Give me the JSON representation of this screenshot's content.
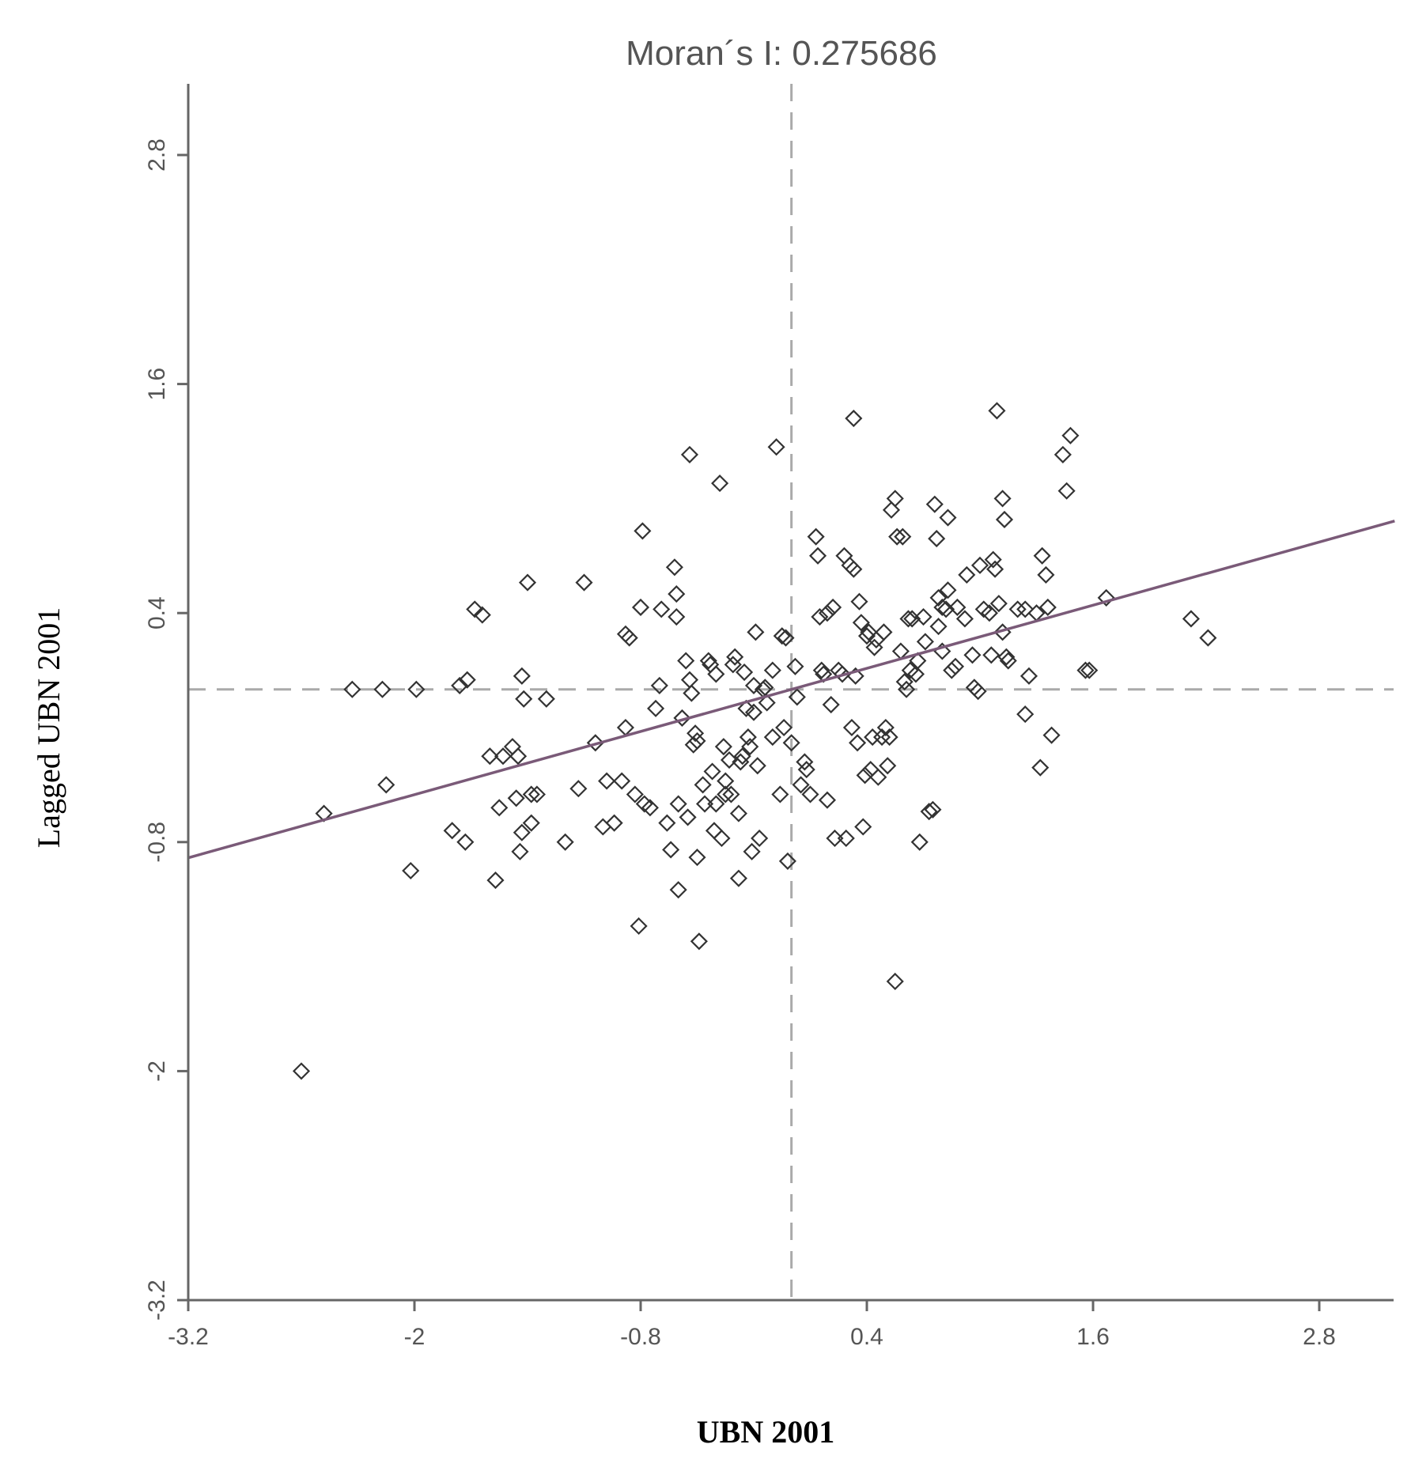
{
  "chart_data": {
    "type": "scatter",
    "title": "Moran´s I: 0.275686",
    "xlabel": "UBN 2001",
    "ylabel": "Lagged UBN 2001",
    "xlim": [
      -3.2,
      3.2
    ],
    "ylim": [
      -3.2,
      3.2
    ],
    "xticks": [
      "-3.2",
      "-2",
      "-0.8",
      "0.4",
      "1.6",
      "2.8"
    ],
    "yticks": [
      "-3.2",
      "-2",
      "-0.8",
      "0.4",
      "1.6",
      "2.8"
    ],
    "ref_x": 0.0,
    "ref_y": 0.0,
    "fit_line": {
      "slope": 0.275686,
      "intercept": 0.0
    },
    "grid": false,
    "points": [
      [
        -2.6,
        -2.0
      ],
      [
        -2.48,
        -0.65
      ],
      [
        -2.33,
        0.0
      ],
      [
        -2.17,
        0.0
      ],
      [
        -1.99,
        0.0
      ],
      [
        -2.15,
        -0.5
      ],
      [
        -2.02,
        -0.95
      ],
      [
        -1.8,
        -0.74
      ],
      [
        -1.76,
        0.02
      ],
      [
        -1.72,
        0.05
      ],
      [
        -1.68,
        0.42
      ],
      [
        -1.64,
        0.39
      ],
      [
        -1.73,
        -0.8
      ],
      [
        -1.6,
        -0.35
      ],
      [
        -1.57,
        -1.0
      ],
      [
        -1.55,
        -0.62
      ],
      [
        -1.53,
        -0.35
      ],
      [
        -1.48,
        -0.3
      ],
      [
        -1.46,
        -0.57
      ],
      [
        -1.45,
        -0.35
      ],
      [
        -1.44,
        -0.85
      ],
      [
        -1.43,
        -0.75
      ],
      [
        -1.43,
        0.07
      ],
      [
        -1.42,
        -0.05
      ],
      [
        -1.4,
        0.56
      ],
      [
        -1.38,
        -0.55
      ],
      [
        -1.38,
        -0.7
      ],
      [
        -1.35,
        -0.55
      ],
      [
        -1.3,
        -0.05
      ],
      [
        -1.2,
        -0.8
      ],
      [
        -1.13,
        -0.52
      ],
      [
        -1.1,
        0.56
      ],
      [
        -1.04,
        -0.28
      ],
      [
        -1.0,
        -0.72
      ],
      [
        -0.98,
        -0.48
      ],
      [
        -0.94,
        -0.7
      ],
      [
        -0.9,
        -0.48
      ],
      [
        -0.88,
        -0.2
      ],
      [
        -0.88,
        0.29
      ],
      [
        -0.86,
        0.27
      ],
      [
        -0.83,
        -0.55
      ],
      [
        -0.81,
        -1.24
      ],
      [
        -0.8,
        0.43
      ],
      [
        -0.79,
        0.83
      ],
      [
        -0.78,
        -0.6
      ],
      [
        -0.75,
        -0.62
      ],
      [
        -0.72,
        -0.1
      ],
      [
        -0.7,
        0.02
      ],
      [
        -0.69,
        0.42
      ],
      [
        -0.66,
        -0.7
      ],
      [
        -0.64,
        -0.84
      ],
      [
        -0.62,
        0.64
      ],
      [
        -0.61,
        0.5
      ],
      [
        -0.61,
        0.38
      ],
      [
        -0.6,
        -0.6
      ],
      [
        -0.6,
        -1.05
      ],
      [
        -0.58,
        -0.15
      ],
      [
        -0.56,
        0.15
      ],
      [
        -0.55,
        -0.67
      ],
      [
        -0.54,
        1.23
      ],
      [
        -0.54,
        0.05
      ],
      [
        -0.53,
        -0.02
      ],
      [
        -0.52,
        -0.29
      ],
      [
        -0.51,
        -0.23
      ],
      [
        -0.5,
        -0.27
      ],
      [
        -0.5,
        -0.88
      ],
      [
        -0.49,
        -1.32
      ],
      [
        -0.47,
        -0.5
      ],
      [
        -0.46,
        -0.6
      ],
      [
        -0.44,
        0.15
      ],
      [
        -0.43,
        0.13
      ],
      [
        -0.42,
        -0.43
      ],
      [
        -0.41,
        -0.74
      ],
      [
        -0.4,
        0.08
      ],
      [
        -0.4,
        -0.6
      ],
      [
        -0.38,
        1.08
      ],
      [
        -0.37,
        -0.78
      ],
      [
        -0.36,
        -0.3
      ],
      [
        -0.35,
        -0.48
      ],
      [
        -0.35,
        -0.55
      ],
      [
        -0.33,
        -0.37
      ],
      [
        -0.32,
        -0.55
      ],
      [
        -0.31,
        0.13
      ],
      [
        -0.3,
        0.17
      ],
      [
        -0.28,
        -0.65
      ],
      [
        -0.28,
        -0.99
      ],
      [
        -0.27,
        -0.38
      ],
      [
        -0.26,
        -0.35
      ],
      [
        -0.25,
        0.09
      ],
      [
        -0.24,
        -0.1
      ],
      [
        -0.23,
        -0.25
      ],
      [
        -0.22,
        -0.3
      ],
      [
        -0.21,
        -0.85
      ],
      [
        -0.2,
        0.02
      ],
      [
        -0.2,
        -0.12
      ],
      [
        -0.19,
        0.3
      ],
      [
        -0.18,
        -0.4
      ],
      [
        -0.17,
        -0.78
      ],
      [
        -0.15,
        0.0
      ],
      [
        -0.14,
        0.01
      ],
      [
        -0.13,
        -0.07
      ],
      [
        -0.1,
        0.1
      ],
      [
        -0.1,
        -0.25
      ],
      [
        -0.08,
        1.27
      ],
      [
        -0.06,
        -0.55
      ],
      [
        -0.05,
        0.28
      ],
      [
        -0.04,
        -0.2
      ],
      [
        -0.03,
        0.27
      ],
      [
        -0.02,
        -0.9
      ],
      [
        0.0,
        -0.28
      ],
      [
        0.02,
        0.12
      ],
      [
        0.03,
        -0.04
      ],
      [
        0.05,
        -0.5
      ],
      [
        0.07,
        -0.38
      ],
      [
        0.08,
        -0.42
      ],
      [
        0.1,
        -0.55
      ],
      [
        0.13,
        0.8
      ],
      [
        0.14,
        0.7
      ],
      [
        0.15,
        0.38
      ],
      [
        0.16,
        0.1
      ],
      [
        0.17,
        0.08
      ],
      [
        0.19,
        -0.58
      ],
      [
        0.19,
        0.4
      ],
      [
        0.21,
        -0.08
      ],
      [
        0.22,
        0.43
      ],
      [
        0.23,
        -0.78
      ],
      [
        0.25,
        0.1
      ],
      [
        0.27,
        0.08
      ],
      [
        0.28,
        0.7
      ],
      [
        0.29,
        -0.78
      ],
      [
        0.31,
        0.65
      ],
      [
        0.32,
        -0.2
      ],
      [
        0.33,
        1.42
      ],
      [
        0.33,
        0.63
      ],
      [
        0.34,
        0.07
      ],
      [
        0.35,
        -0.28
      ],
      [
        0.36,
        0.46
      ],
      [
        0.37,
        0.35
      ],
      [
        0.38,
        -0.72
      ],
      [
        0.39,
        -0.45
      ],
      [
        0.4,
        0.28
      ],
      [
        0.41,
        0.3
      ],
      [
        0.42,
        -0.42
      ],
      [
        0.43,
        -0.25
      ],
      [
        0.44,
        0.22
      ],
      [
        0.45,
        0.26
      ],
      [
        0.46,
        -0.46
      ],
      [
        0.48,
        -0.25
      ],
      [
        0.49,
        0.3
      ],
      [
        0.5,
        -0.2
      ],
      [
        0.51,
        -0.4
      ],
      [
        0.52,
        -0.25
      ],
      [
        0.53,
        0.94
      ],
      [
        0.55,
        1.0
      ],
      [
        0.55,
        -1.53
      ],
      [
        0.56,
        0.8
      ],
      [
        0.58,
        0.2
      ],
      [
        0.59,
        0.8
      ],
      [
        0.6,
        0.04
      ],
      [
        0.61,
        0.0
      ],
      [
        0.62,
        0.37
      ],
      [
        0.63,
        0.1
      ],
      [
        0.64,
        0.37
      ],
      [
        0.66,
        0.08
      ],
      [
        0.67,
        0.15
      ],
      [
        0.68,
        -0.8
      ],
      [
        0.7,
        0.38
      ],
      [
        0.71,
        0.25
      ],
      [
        0.73,
        -0.64
      ],
      [
        0.75,
        -0.63
      ],
      [
        0.76,
        0.97
      ],
      [
        0.77,
        0.79
      ],
      [
        0.78,
        0.33
      ],
      [
        0.78,
        0.48
      ],
      [
        0.8,
        0.43
      ],
      [
        0.8,
        0.2
      ],
      [
        0.82,
        0.42
      ],
      [
        0.83,
        0.52
      ],
      [
        0.83,
        0.9
      ],
      [
        0.85,
        0.1
      ],
      [
        0.87,
        0.12
      ],
      [
        0.88,
        0.43
      ],
      [
        0.92,
        0.37
      ],
      [
        0.93,
        0.6
      ],
      [
        0.96,
        0.18
      ],
      [
        0.97,
        0.01
      ],
      [
        0.99,
        -0.01
      ],
      [
        1.0,
        0.65
      ],
      [
        1.02,
        0.42
      ],
      [
        1.05,
        0.4
      ],
      [
        1.06,
        0.18
      ],
      [
        1.07,
        0.68
      ],
      [
        1.08,
        0.63
      ],
      [
        1.09,
        1.46
      ],
      [
        1.1,
        0.45
      ],
      [
        1.12,
        1.0
      ],
      [
        1.12,
        0.3
      ],
      [
        1.13,
        0.89
      ],
      [
        1.14,
        0.17
      ],
      [
        1.15,
        0.15
      ],
      [
        1.2,
        0.42
      ],
      [
        1.24,
        0.42
      ],
      [
        1.24,
        -0.13
      ],
      [
        1.26,
        0.07
      ],
      [
        1.3,
        0.4
      ],
      [
        1.32,
        -0.41
      ],
      [
        1.33,
        0.7
      ],
      [
        1.35,
        0.6
      ],
      [
        1.36,
        0.43
      ],
      [
        1.38,
        -0.24
      ],
      [
        1.44,
        1.23
      ],
      [
        1.46,
        1.04
      ],
      [
        1.48,
        1.33
      ],
      [
        1.56,
        0.1
      ],
      [
        1.58,
        0.1
      ],
      [
        1.67,
        0.48
      ],
      [
        2.12,
        0.37
      ],
      [
        2.21,
        0.27
      ]
    ]
  }
}
